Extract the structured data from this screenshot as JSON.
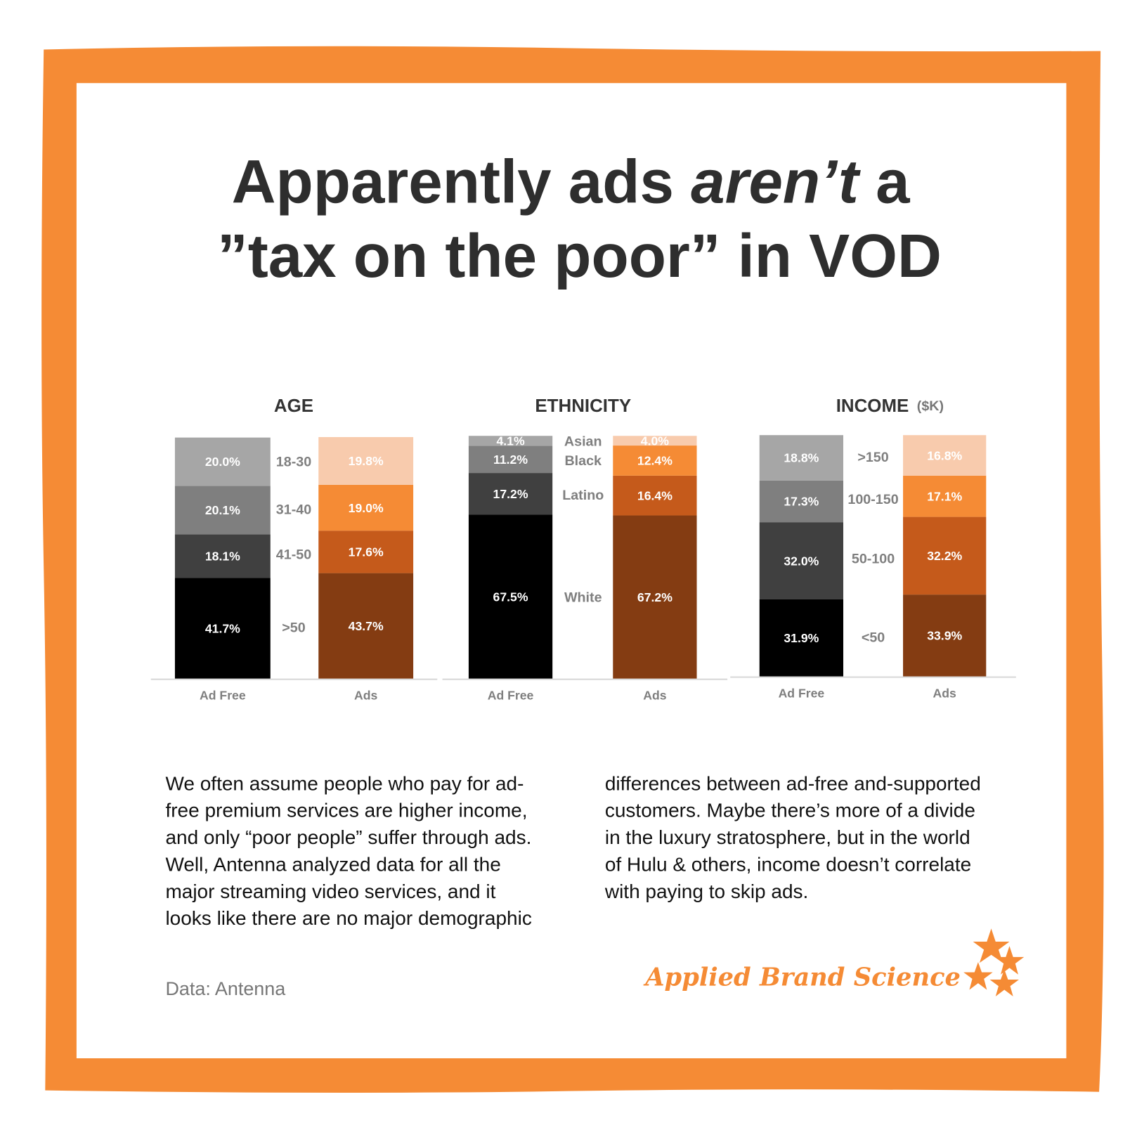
{
  "header": {
    "title_start": "Apparently ads ",
    "title_italic": "aren’t",
    "title_end": " a",
    "title_line2": "”tax on the poor” in VOD"
  },
  "chart_data": [
    {
      "type": "stacked-bar",
      "title": "AGE",
      "categories": [
        "Ad Free",
        "Ads"
      ],
      "ylim": [
        0,
        100
      ],
      "series": [
        {
          "name": ">50",
          "colors": [
            "#000000",
            "#843c12"
          ],
          "values": [
            41.7,
            43.7
          ],
          "value_labels": [
            "41.7%",
            "43.7%"
          ]
        },
        {
          "name": "41-50",
          "colors": [
            "#404040",
            "#c55a1b"
          ],
          "values": [
            18.1,
            17.6
          ],
          "value_labels": [
            "18.1%",
            "17.6%"
          ]
        },
        {
          "name": "31-40",
          "colors": [
            "#7f7f7f",
            "#f58b35"
          ],
          "values": [
            20.1,
            19.0
          ],
          "value_labels": [
            "20.1%",
            "19.0%"
          ]
        },
        {
          "name": "18-30",
          "colors": [
            "#a6a6a6",
            "#f8cbad"
          ],
          "values": [
            20.0,
            19.8
          ],
          "value_labels": [
            "20.0%",
            "19.8%"
          ]
        }
      ]
    },
    {
      "type": "stacked-bar",
      "title": "ETHNICITY",
      "categories": [
        "Ad Free",
        "Ads"
      ],
      "ylim": [
        0,
        100
      ],
      "series": [
        {
          "name": "White",
          "colors": [
            "#000000",
            "#843c12"
          ],
          "values": [
            67.5,
            67.2
          ],
          "value_labels": [
            "67.5%",
            "67.2%"
          ]
        },
        {
          "name": "Latino",
          "colors": [
            "#404040",
            "#c55a1b"
          ],
          "values": [
            17.2,
            16.4
          ],
          "value_labels": [
            "17.2%",
            "16.4%"
          ]
        },
        {
          "name": "Black",
          "colors": [
            "#7f7f7f",
            "#f58b35"
          ],
          "values": [
            11.2,
            12.4
          ],
          "value_labels": [
            "11.2%",
            "12.4%"
          ]
        },
        {
          "name": "Asian",
          "colors": [
            "#a6a6a6",
            "#f8cbad"
          ],
          "values": [
            4.1,
            4.0
          ],
          "value_labels": [
            "4.1%",
            "4.0%"
          ]
        }
      ]
    },
    {
      "type": "stacked-bar",
      "title": "INCOME",
      "subtitle": "($K)",
      "categories": [
        "Ad Free",
        "Ads"
      ],
      "ylim": [
        0,
        100
      ],
      "series": [
        {
          "name": "<50",
          "colors": [
            "#000000",
            "#843c12"
          ],
          "values": [
            31.9,
            33.9
          ],
          "value_labels": [
            "31.9%",
            "33.9%"
          ]
        },
        {
          "name": "50-100",
          "colors": [
            "#404040",
            "#c55a1b"
          ],
          "values": [
            32.0,
            32.2
          ],
          "value_labels": [
            "32.0%",
            "32.2%"
          ]
        },
        {
          "name": "100-150",
          "colors": [
            "#7f7f7f",
            "#f58b35"
          ],
          "values": [
            17.3,
            17.1
          ],
          "value_labels": [
            "17.3%",
            "17.1%"
          ]
        },
        {
          "name": ">150",
          "colors": [
            "#a6a6a6",
            "#f8cbad"
          ],
          "values": [
            18.8,
            16.8
          ],
          "value_labels": [
            "18.8%",
            "16.8%"
          ]
        }
      ]
    }
  ],
  "body": [
    [
      "We often assume people who pay for ad-",
      "free premium services are higher income,",
      "and only “poor people” suffer through ads.",
      "Well, Antenna analyzed data for all the",
      "major streaming video services, and it",
      "looks like there are no major demographic"
    ],
    [
      "differences between ad-free and-supported",
      "customers. Maybe there’s more of a divide",
      "in the luxury stratosphere, but in the world",
      "of Hulu & others, income doesn’t correlate",
      "with paying to skip ads."
    ]
  ],
  "source": "Data: Antenna",
  "brand": "Applied Brand Science"
}
